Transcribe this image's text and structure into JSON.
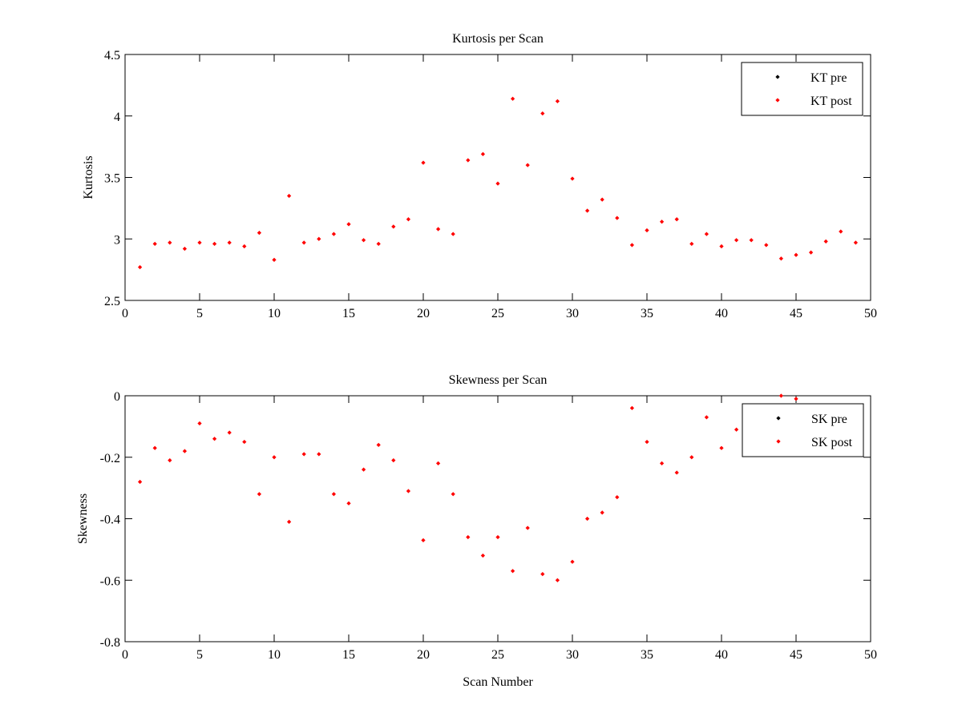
{
  "chart_data": [
    {
      "type": "scatter",
      "title": "Kurtosis per Scan",
      "xlabel": "",
      "ylabel": "Kurtosis",
      "xlim": [
        0,
        50
      ],
      "ylim": [
        2.5,
        4.5
      ],
      "xticks": [
        0,
        5,
        10,
        15,
        20,
        25,
        30,
        35,
        40,
        45,
        50
      ],
      "yticks": [
        2.5,
        3,
        3.5,
        4,
        4.5
      ],
      "tick_labels_x": [
        "0",
        "5",
        "10",
        "15",
        "20",
        "25",
        "30",
        "35",
        "40",
        "45",
        "50"
      ],
      "tick_labels_y": [
        "2.5",
        "3",
        "3.5",
        "4",
        "4.5"
      ],
      "grid": false,
      "legend_position": "top-right",
      "series": [
        {
          "name": "KT pre",
          "color": "#000000",
          "x": [],
          "y": []
        },
        {
          "name": "KT post",
          "color": "#ff0000",
          "x": [
            1,
            2,
            3,
            4,
            5,
            6,
            7,
            8,
            9,
            10,
            11,
            12,
            13,
            14,
            15,
            16,
            17,
            18,
            19,
            20,
            21,
            22,
            23,
            24,
            25,
            26,
            27,
            28,
            29,
            30,
            31,
            32,
            33,
            34,
            35,
            36,
            37,
            38,
            39,
            40,
            41,
            42,
            43,
            44,
            45,
            46,
            47,
            48,
            49
          ],
          "y": [
            2.77,
            2.96,
            2.97,
            2.92,
            2.97,
            2.96,
            2.97,
            2.94,
            3.05,
            2.83,
            3.35,
            2.97,
            3.0,
            3.04,
            3.12,
            2.99,
            2.96,
            3.1,
            3.16,
            3.62,
            3.08,
            3.04,
            3.64,
            3.69,
            3.45,
            4.14,
            3.6,
            4.02,
            4.12,
            3.49,
            3.23,
            3.32,
            3.17,
            2.95,
            3.07,
            3.14,
            3.16,
            2.96,
            3.04,
            2.94,
            2.99,
            2.99,
            2.95,
            2.84,
            2.87,
            2.89,
            2.98,
            3.06,
            2.97
          ]
        }
      ]
    },
    {
      "type": "scatter",
      "title": "Skewness per Scan",
      "xlabel": "Scan Number",
      "ylabel": "Skewness",
      "xlim": [
        0,
        50
      ],
      "ylim": [
        -0.8,
        0
      ],
      "xticks": [
        0,
        5,
        10,
        15,
        20,
        25,
        30,
        35,
        40,
        45,
        50
      ],
      "yticks": [
        -0.8,
        -0.6,
        -0.4,
        -0.2,
        0
      ],
      "tick_labels_x": [
        "0",
        "5",
        "10",
        "15",
        "20",
        "25",
        "30",
        "35",
        "40",
        "45",
        "50"
      ],
      "tick_labels_y": [
        "-0.8",
        "-0.6",
        "-0.4",
        "-0.2",
        "0"
      ],
      "grid": false,
      "legend_position": "top-right",
      "series": [
        {
          "name": "SK pre",
          "color": "#000000",
          "x": [],
          "y": []
        },
        {
          "name": "SK post",
          "color": "#ff0000",
          "x": [
            1,
            2,
            3,
            4,
            5,
            6,
            7,
            8,
            9,
            10,
            11,
            12,
            13,
            14,
            15,
            16,
            17,
            18,
            19,
            20,
            21,
            22,
            23,
            24,
            25,
            26,
            27,
            28,
            29,
            30,
            31,
            32,
            33,
            34,
            35,
            36,
            37,
            38,
            39,
            40,
            41,
            42,
            43,
            44,
            45
          ],
          "y": [
            -0.28,
            -0.17,
            -0.21,
            -0.18,
            -0.09,
            -0.14,
            -0.12,
            -0.15,
            -0.32,
            -0.2,
            -0.41,
            -0.19,
            -0.19,
            -0.32,
            -0.35,
            -0.24,
            -0.16,
            -0.21,
            -0.31,
            -0.47,
            -0.22,
            -0.32,
            -0.46,
            -0.52,
            -0.46,
            -0.57,
            -0.43,
            -0.58,
            -0.6,
            -0.54,
            -0.4,
            -0.38,
            -0.33,
            -0.04,
            -0.15,
            -0.22,
            -0.25,
            -0.2,
            -0.07,
            -0.17,
            -0.11,
            -0.1,
            -0.07,
            0.0,
            -0.01
          ]
        }
      ]
    }
  ]
}
